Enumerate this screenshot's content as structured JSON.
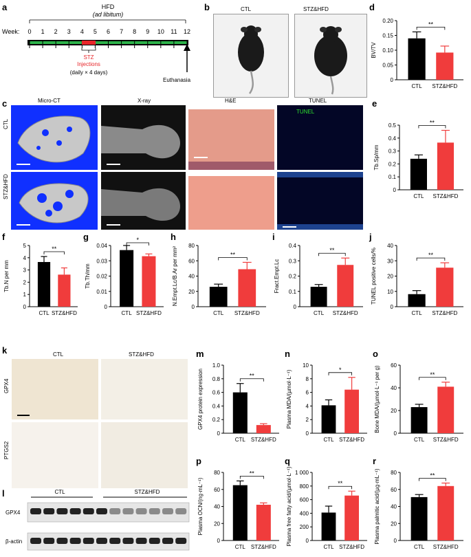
{
  "panel_letters": {
    "a": "a",
    "b": "b",
    "c": "c",
    "d": "d",
    "e": "e",
    "f": "f",
    "g": "g",
    "h": "h",
    "i": "i",
    "j": "j",
    "k": "k",
    "l": "l",
    "m": "m",
    "n": "n",
    "o": "o",
    "p": "p",
    "q": "q",
    "r": "r"
  },
  "timeline": {
    "hfd_label": "HFD",
    "hfd_sub": "(ad libitum)",
    "week_label": "Week:",
    "weeks": [
      "0",
      "1",
      "2",
      "3",
      "4",
      "5",
      "6",
      "7",
      "8",
      "9",
      "10",
      "11",
      "12"
    ],
    "stz_label": "STZ",
    "stz_label2": "Injections",
    "stz_sub": "(daily × 4 days)",
    "euth_label": "Euthanasia",
    "colors": {
      "hfd_bar": "#2db34a",
      "stz": "#e8262a"
    }
  },
  "mice": {
    "ctl": "CTL",
    "stz": "STZ&HFD"
  },
  "images_c": {
    "cols": [
      "Micro-CT",
      "X-ray",
      "H&E",
      "TUNEL"
    ],
    "rows": [
      "CTL",
      "STZ&HFD"
    ],
    "tunel_tag": "TUNEL"
  },
  "stain_k": {
    "cols": [
      "CTL",
      "STZ&HFD"
    ],
    "rows": [
      "GPX4",
      "PTGS2"
    ]
  },
  "blot_l": {
    "groups": [
      "CTL",
      "STZ&HFD"
    ],
    "rows": [
      "GPX4",
      "β-actin"
    ]
  },
  "colors": {
    "ctl": "#000000",
    "stz": "#f03c3c"
  },
  "chart_data": [
    {
      "id": "d",
      "type": "bar",
      "categories": [
        "CTL",
        "STZ&HFD"
      ],
      "values": [
        0.14,
        0.092
      ],
      "errors": [
        0.022,
        0.022
      ],
      "ylabel": "BV/TV",
      "ylim": [
        0,
        0.2
      ],
      "ticks": [
        0,
        0.05,
        0.1,
        0.15,
        0.2
      ],
      "tick_labels": [
        "0",
        "0.05",
        "0.10",
        "0.15",
        "0.20"
      ],
      "sig": "**"
    },
    {
      "id": "e",
      "type": "bar",
      "categories": [
        "CTL",
        "STZ&HFD"
      ],
      "values": [
        0.24,
        0.365
      ],
      "errors": [
        0.03,
        0.095
      ],
      "ylabel": "Tb.Sp/mm",
      "ylim": [
        0,
        0.5
      ],
      "ticks": [
        0,
        0.1,
        0.2,
        0.3,
        0.4,
        0.5
      ],
      "tick_labels": [
        "0",
        "0.1",
        "0.2",
        "0.3",
        "0.4",
        "0.5"
      ],
      "sig": "**"
    },
    {
      "id": "f",
      "type": "bar",
      "categories": [
        "CTL",
        "STZ&HFD"
      ],
      "values": [
        3.65,
        2.62
      ],
      "errors": [
        0.45,
        0.55
      ],
      "ylabel": "Tb.N per mm",
      "ylim": [
        0,
        5
      ],
      "ticks": [
        0,
        1,
        2,
        3,
        4,
        5
      ],
      "tick_labels": [
        "0",
        "1",
        "2",
        "3",
        "4",
        "5"
      ],
      "sig": "**"
    },
    {
      "id": "g",
      "type": "bar",
      "categories": [
        "CTL",
        "STZ&HFD"
      ],
      "values": [
        0.037,
        0.033
      ],
      "errors": [
        0.003,
        0.0015
      ],
      "ylabel": "Tb.Th/mm",
      "ylim": [
        0,
        0.04
      ],
      "ticks": [
        0,
        0.01,
        0.02,
        0.03,
        0.04
      ],
      "tick_labels": [
        "0",
        "0.01",
        "0.02",
        "0.03",
        "0.04"
      ],
      "sig": "*"
    },
    {
      "id": "h",
      "type": "bar",
      "categories": [
        "CTL",
        "STZ&HFD"
      ],
      "values": [
        26,
        49
      ],
      "errors": [
        3.5,
        9
      ],
      "ylabel": "N.Empt.Lc/B.Ar per mm²",
      "ylim": [
        0,
        80
      ],
      "ticks": [
        0,
        20,
        40,
        60,
        80
      ],
      "tick_labels": [
        "0",
        "20",
        "40",
        "60",
        "80"
      ],
      "sig": "**"
    },
    {
      "id": "i",
      "type": "bar",
      "categories": [
        "CTL",
        "STZ&HFD"
      ],
      "values": [
        0.13,
        0.273
      ],
      "errors": [
        0.015,
        0.045
      ],
      "ylabel": "Fract.Empt.Lc",
      "ylim": [
        0,
        0.4
      ],
      "ticks": [
        0,
        0.1,
        0.2,
        0.3,
        0.4
      ],
      "tick_labels": [
        "0",
        "0.1",
        "0.2",
        "0.3",
        "0.4"
      ],
      "sig": "**"
    },
    {
      "id": "j",
      "type": "bar",
      "categories": [
        "CTL",
        "STZ&HFD"
      ],
      "values": [
        8.2,
        25.5
      ],
      "errors": [
        2.3,
        3.2
      ],
      "ylabel": "TUNEL positive cells/%",
      "ylim": [
        0,
        40
      ],
      "ticks": [
        0,
        10,
        20,
        30,
        40
      ],
      "tick_labels": [
        "0",
        "10",
        "20",
        "30",
        "40"
      ],
      "sig": "**"
    },
    {
      "id": "m",
      "type": "bar",
      "categories": [
        "CTL",
        "STZ&HFD"
      ],
      "values": [
        0.6,
        0.12
      ],
      "errors": [
        0.13,
        0.02
      ],
      "ylabel": "GPX4 protein expression",
      "ylim": [
        0,
        1.0
      ],
      "ticks": [
        0,
        0.2,
        0.4,
        0.6,
        0.8,
        1.0
      ],
      "tick_labels": [
        "0",
        "0.2",
        "0.4",
        "0.6",
        "0.8",
        "1.0"
      ],
      "sig": "**"
    },
    {
      "id": "n",
      "type": "bar",
      "categories": [
        "CTL",
        "STZ&HFD"
      ],
      "values": [
        4.1,
        6.4
      ],
      "errors": [
        0.8,
        1.8
      ],
      "ylabel": "Plasma MDA/(µmol·L⁻¹)",
      "ylim": [
        0,
        10
      ],
      "ticks": [
        0,
        2,
        4,
        6,
        8,
        10
      ],
      "tick_labels": [
        "0",
        "2",
        "4",
        "6",
        "8",
        "10"
      ],
      "sig": "*"
    },
    {
      "id": "o",
      "type": "bar",
      "categories": [
        "CTL",
        "STZ&HFD"
      ],
      "values": [
        23,
        41
      ],
      "errors": [
        2.5,
        4
      ],
      "ylabel": "Bone MDA/(µmol·L⁻¹ per g)",
      "ylim": [
        0,
        60
      ],
      "ticks": [
        0,
        20,
        40,
        60
      ],
      "tick_labels": [
        "0",
        "20",
        "40",
        "60"
      ],
      "sig": "**"
    },
    {
      "id": "p",
      "type": "bar",
      "categories": [
        "CTL",
        "STZ&HFD"
      ],
      "values": [
        65,
        42
      ],
      "errors": [
        5,
        2.2
      ],
      "ylabel": "Plasma OCN/(ng·mL⁻¹)",
      "ylim": [
        0,
        80
      ],
      "ticks": [
        0,
        20,
        40,
        60,
        80
      ],
      "tick_labels": [
        "0",
        "20",
        "40",
        "60",
        "80"
      ],
      "sig": "**"
    },
    {
      "id": "q",
      "type": "bar",
      "categories": [
        "CTL",
        "STZ&HFD"
      ],
      "values": [
        410,
        660
      ],
      "errors": [
        95,
        65
      ],
      "ylabel": "Plasma free fatty acid/(µmol·L⁻¹)",
      "ylim": [
        0,
        1000
      ],
      "ticks": [
        0,
        200,
        400,
        600,
        800,
        1000
      ],
      "tick_labels": [
        "0",
        "200",
        "400",
        "600",
        "800",
        "1 000"
      ],
      "sig": "**"
    },
    {
      "id": "r",
      "type": "bar",
      "categories": [
        "CTL",
        "STZ&HFD"
      ],
      "values": [
        51,
        64
      ],
      "errors": [
        3,
        3.5
      ],
      "ylabel": "Plasma palmitic acid/(µg·mL⁻¹)",
      "ylim": [
        0,
        80
      ],
      "ticks": [
        0,
        20,
        40,
        60,
        80
      ],
      "tick_labels": [
        "0",
        "20",
        "40",
        "60",
        "80"
      ],
      "sig": "**"
    }
  ]
}
